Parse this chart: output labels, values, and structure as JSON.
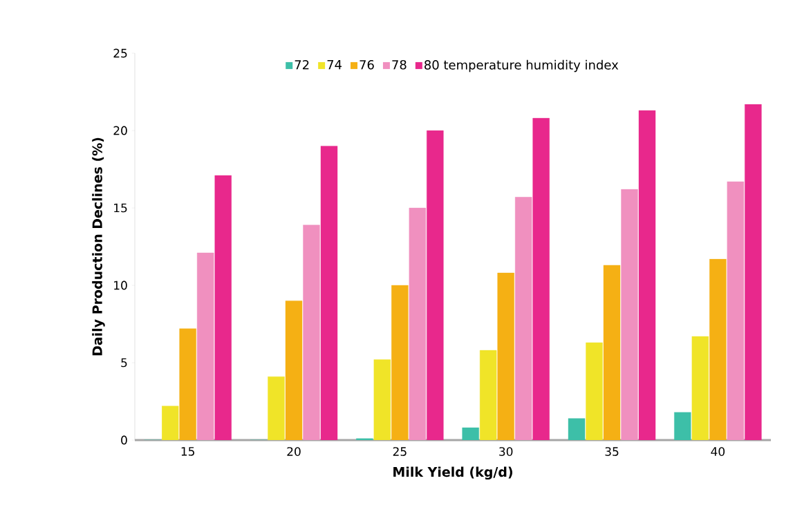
{
  "chart_data": {
    "type": "bar",
    "xlabel": "Milk Yield (kg/d)",
    "ylabel": "Daily Production Declines (%)",
    "categories": [
      "15",
      "20",
      "25",
      "30",
      "35",
      "40"
    ],
    "series": [
      {
        "name": "72",
        "color": "#3dbfa8",
        "values": [
          0,
          0,
          0.1,
          0.8,
          1.4,
          1.8
        ]
      },
      {
        "name": "74",
        "color": "#f0e428",
        "values": [
          2.2,
          4.1,
          5.2,
          5.8,
          6.3,
          6.7
        ]
      },
      {
        "name": "76",
        "color": "#f5b014",
        "values": [
          7.2,
          9.0,
          10.0,
          10.8,
          11.3,
          11.7
        ]
      },
      {
        "name": "78",
        "color": "#f090bf",
        "values": [
          12.1,
          13.9,
          15.0,
          15.7,
          16.2,
          16.7
        ]
      },
      {
        "name": "80 temperature humidity index",
        "color": "#e8288c",
        "values": [
          17.1,
          19.0,
          20.0,
          20.8,
          21.3,
          21.7
        ]
      }
    ],
    "ylim": [
      0,
      25
    ],
    "yticks": [
      0,
      5,
      10,
      15,
      20,
      25
    ],
    "legend": "top"
  }
}
